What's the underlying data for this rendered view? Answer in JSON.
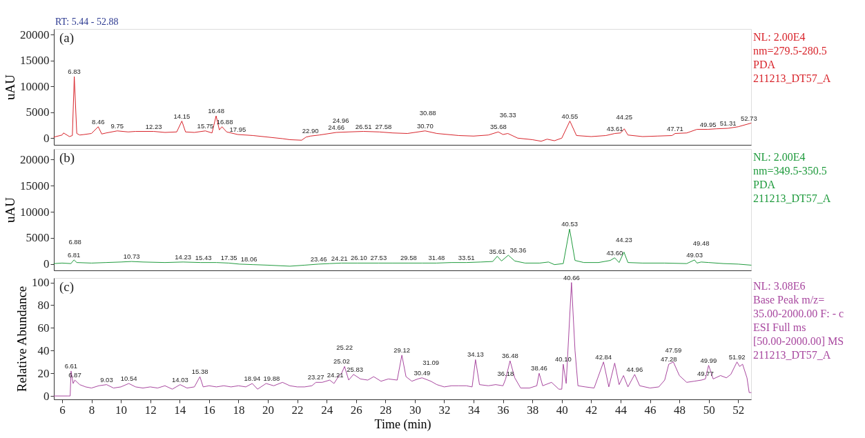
{
  "chart_data": [
    {
      "type": "line",
      "title": "(a)",
      "subtitle": "RT: 5.44 - 52.88",
      "ylabel": "uAU",
      "xlim": [
        5.44,
        52.88
      ],
      "ylim": [
        -1300,
        21100
      ],
      "xticks": [
        6,
        8,
        10,
        12,
        14,
        16,
        18,
        20,
        22,
        24,
        26,
        28,
        30,
        32,
        34,
        36,
        38,
        40,
        42,
        44,
        46,
        48,
        50,
        52
      ],
      "yticks": [
        0,
        5000,
        10000,
        15000,
        20000
      ],
      "tick_labels": "y",
      "grid": false,
      "series": [
        {
          "color": "#d8232a",
          "line_style": "solid",
          "x": [
            5.44,
            6.0,
            6.1,
            6.5,
            6.7,
            6.83,
            7.0,
            7.2,
            7.5,
            8.0,
            8.46,
            8.7,
            9.0,
            9.75,
            10.5,
            11.0,
            12.23,
            13.0,
            13.8,
            14.15,
            14.4,
            15.0,
            15.75,
            16.2,
            16.48,
            16.7,
            16.88,
            17.2,
            17.95,
            19.0,
            20.0,
            21.0,
            21.5,
            22.3,
            22.6,
            22.9,
            23.5,
            24.66,
            25.5,
            26.51,
            27.58,
            28.5,
            29.5,
            30.7,
            31.5,
            33.0,
            34.0,
            35.0,
            35.68,
            36.0,
            36.33,
            37.0,
            38.0,
            38.6,
            39.0,
            39.5,
            40.0,
            40.55,
            41.0,
            42.0,
            43.0,
            43.61,
            44.0,
            44.25,
            44.5,
            45.5,
            46.5,
            47.5,
            47.71,
            48.5,
            49.2,
            49.95,
            50.5,
            51.31,
            52.0,
            52.88
          ],
          "values": [
            200,
            600,
            1000,
            300,
            500,
            11900,
            900,
            600,
            700,
            900,
            2200,
            800,
            1000,
            1400,
            1200,
            1300,
            1300,
            1100,
            1200,
            3300,
            1200,
            1100,
            1400,
            1000,
            4300,
            1600,
            2200,
            1200,
            700,
            500,
            200,
            -100,
            -300,
            -400,
            200,
            400,
            600,
            1100,
            1200,
            1300,
            1200,
            1000,
            900,
            1400,
            900,
            500,
            400,
            600,
            1200,
            700,
            900,
            0,
            -300,
            -600,
            -200,
            -500,
            0,
            3300,
            500,
            300,
            500,
            900,
            1000,
            1800,
            600,
            300,
            400,
            500,
            900,
            1000,
            1700,
            1700,
            1800,
            1900,
            2200,
            2900
          ]
        }
      ],
      "annotations": [
        "NL: 2.00E4",
        "nm=279.5-280.5",
        "PDA",
        "211213_DT57_A",
        {
          "text": "6.83",
          "x": 6.83,
          "y": 11900
        },
        {
          "text": "8.46",
          "x": 8.46,
          "y": 2200
        },
        {
          "text": "9.75",
          "x": 9.75,
          "y": 1400
        },
        {
          "text": "12.23",
          "x": 12.23,
          "y": 1300
        },
        {
          "text": "14.15",
          "x": 14.15,
          "y": 3300
        },
        {
          "text": "15.75",
          "x": 15.75,
          "y": 1400
        },
        {
          "text": "16.48",
          "x": 16.48,
          "y": 4300
        },
        {
          "text": "16.88",
          "x": 16.88,
          "y": 2200
        },
        {
          "text": "17.95",
          "x": 17.95,
          "y": 700
        },
        {
          "text": "22.90",
          "x": 22.9,
          "y": 400
        },
        {
          "text": "24.66",
          "x": 24.66,
          "y": 1100
        },
        {
          "text": "24.96",
          "x": 24.96,
          "y": 1100
        },
        {
          "text": "26.51",
          "x": 26.51,
          "y": 1300
        },
        {
          "text": "27.58",
          "x": 27.58,
          "y": 1200
        },
        {
          "text": "30.70",
          "x": 30.7,
          "y": 1400
        },
        {
          "text": "30.88",
          "x": 30.88,
          "y": 1300
        },
        {
          "text": "35.68",
          "x": 35.68,
          "y": 1200
        },
        {
          "text": "36.33",
          "x": 36.33,
          "y": 900
        },
        {
          "text": "40.55",
          "x": 40.55,
          "y": 3300
        },
        {
          "text": "43.61",
          "x": 43.61,
          "y": 900
        },
        {
          "text": "44.25",
          "x": 44.25,
          "y": 1800
        },
        {
          "text": "47.71",
          "x": 47.71,
          "y": 900
        },
        {
          "text": "49.95",
          "x": 49.95,
          "y": 1700
        },
        {
          "text": "51.31",
          "x": 51.31,
          "y": 1900
        },
        {
          "text": "52.73",
          "x": 52.73,
          "y": 2800
        }
      ]
    },
    {
      "type": "line",
      "title": "(b)",
      "ylabel": "uAU",
      "xlim": [
        5.44,
        52.88
      ],
      "ylim": [
        -1200,
        22000
      ],
      "xticks": [
        6,
        8,
        10,
        12,
        14,
        16,
        18,
        20,
        22,
        24,
        26,
        28,
        30,
        32,
        34,
        36,
        38,
        40,
        42,
        44,
        46,
        48,
        50,
        52
      ],
      "yticks": [
        0,
        5000,
        10000,
        15000,
        20000
      ],
      "tick_labels": "y",
      "grid": false,
      "series": [
        {
          "color": "#1e9a3c",
          "line_style": "solid",
          "x": [
            5.44,
            6.0,
            6.6,
            6.81,
            7.0,
            8.0,
            9.0,
            10.0,
            10.73,
            11.5,
            13.0,
            14.23,
            15.43,
            16.5,
            17.35,
            18.06,
            19.0,
            20.0,
            21.5,
            22.5,
            23.46,
            24.21,
            25.0,
            26.1,
            27.53,
            28.5,
            29.58,
            30.5,
            31.48,
            32.5,
            33.51,
            34.5,
            35.3,
            35.61,
            35.9,
            36.36,
            36.8,
            37.5,
            38.5,
            39.1,
            39.5,
            40.1,
            40.53,
            40.9,
            41.5,
            42.5,
            43.3,
            43.6,
            43.9,
            44.23,
            44.5,
            45.5,
            47.0,
            48.5,
            49.03,
            49.2,
            49.48,
            50.0,
            51.0,
            52.0,
            52.88
          ],
          "values": [
            100,
            200,
            100,
            800,
            300,
            200,
            300,
            400,
            500,
            400,
            300,
            400,
            300,
            300,
            200,
            0,
            -100,
            -200,
            -400,
            -200,
            0,
            100,
            200,
            200,
            200,
            200,
            200,
            200,
            200,
            300,
            300,
            400,
            500,
            1500,
            600,
            1700,
            600,
            200,
            200,
            400,
            -100,
            100,
            6700,
            700,
            300,
            300,
            700,
            1200,
            300,
            2300,
            300,
            200,
            200,
            100,
            800,
            200,
            400,
            300,
            100,
            0,
            -200
          ]
        }
      ],
      "annotations": [
        "NL: 2.00E4",
        "nm=349.5-350.5",
        "PDA",
        "211213_DT57_A",
        {
          "text": "6.81",
          "x": 6.81,
          "y": 800
        },
        {
          "text": "6.88",
          "x": 6.88,
          "y": 600
        },
        {
          "text": "10.73",
          "x": 10.73,
          "y": 500
        },
        {
          "text": "14.23",
          "x": 14.23,
          "y": 400
        },
        {
          "text": "15.43",
          "x": 15.43,
          "y": 300
        },
        {
          "text": "17.35",
          "x": 17.35,
          "y": 200
        },
        {
          "text": "18.06",
          "x": 18.06,
          "y": 0
        },
        {
          "text": "23.46",
          "x": 23.46,
          "y": 0
        },
        {
          "text": "24.21",
          "x": 24.21,
          "y": 100
        },
        {
          "text": "26.10",
          "x": 26.1,
          "y": 200
        },
        {
          "text": "27.53",
          "x": 27.53,
          "y": 200
        },
        {
          "text": "29.58",
          "x": 29.58,
          "y": 200
        },
        {
          "text": "31.48",
          "x": 31.48,
          "y": 200
        },
        {
          "text": "33.51",
          "x": 33.51,
          "y": 300
        },
        {
          "text": "35.61",
          "x": 35.61,
          "y": 1500
        },
        {
          "text": "36.36",
          "x": 36.36,
          "y": 1700
        },
        {
          "text": "40.53",
          "x": 40.53,
          "y": 6700
        },
        {
          "text": "43.60",
          "x": 43.6,
          "y": 1200
        },
        {
          "text": "44.23",
          "x": 44.23,
          "y": 2300
        },
        {
          "text": "49.03",
          "x": 49.03,
          "y": 800
        },
        {
          "text": "49.48",
          "x": 49.48,
          "y": 400
        }
      ]
    },
    {
      "type": "line",
      "title": "(c)",
      "xlabel": "Time (min)",
      "ylabel": "Relative Abundance",
      "xlim": [
        5.44,
        52.88
      ],
      "ylim": [
        -3,
        104
      ],
      "xticks": [
        6,
        8,
        10,
        12,
        14,
        16,
        18,
        20,
        22,
        24,
        26,
        28,
        30,
        32,
        34,
        36,
        38,
        40,
        42,
        44,
        46,
        48,
        50,
        52
      ],
      "yticks": [
        0,
        20,
        40,
        60,
        80,
        100
      ],
      "grid": false,
      "series": [
        {
          "color": "#a8479f",
          "line_style": "solid",
          "x": [
            5.44,
            6.4,
            6.55,
            6.61,
            6.75,
            6.87,
            7.2,
            7.6,
            8.0,
            8.5,
            9.03,
            9.5,
            10.0,
            10.54,
            11.0,
            11.5,
            12.0,
            12.5,
            13.0,
            13.5,
            14.03,
            14.5,
            15.0,
            15.38,
            15.6,
            16.0,
            16.5,
            17.0,
            17.5,
            18.0,
            18.5,
            18.94,
            19.3,
            19.88,
            20.4,
            21.0,
            21.5,
            22.0,
            22.5,
            23.0,
            23.27,
            23.7,
            24.21,
            24.5,
            24.8,
            25.02,
            25.22,
            25.5,
            25.83,
            26.3,
            26.8,
            27.2,
            27.7,
            28.2,
            28.8,
            29.12,
            29.4,
            29.8,
            30.2,
            30.49,
            31.09,
            31.5,
            32.0,
            32.5,
            33.0,
            33.5,
            33.9,
            34.13,
            34.4,
            35.0,
            35.5,
            36.0,
            36.18,
            36.48,
            36.8,
            37.2,
            37.8,
            38.3,
            38.46,
            38.7,
            39.3,
            39.8,
            40.0,
            40.1,
            40.3,
            40.66,
            40.9,
            41.1,
            41.6,
            42.2,
            42.84,
            43.2,
            43.6,
            43.9,
            44.2,
            44.5,
            44.96,
            45.3,
            46.0,
            46.6,
            47.0,
            47.28,
            47.59,
            48.0,
            48.5,
            49.0,
            49.5,
            49.77,
            49.99,
            50.3,
            50.8,
            51.2,
            51.5,
            51.92,
            52.1,
            52.3,
            52.6,
            52.75,
            52.88
          ],
          "values": [
            0,
            0,
            0,
            22,
            11,
            14,
            10,
            8,
            7,
            9,
            10,
            7,
            8,
            11,
            8,
            7,
            8,
            7,
            9,
            6,
            10,
            7,
            8,
            17,
            8,
            9,
            8,
            9,
            8,
            9,
            8,
            11,
            6,
            11,
            9,
            12,
            9,
            8,
            8,
            9,
            12,
            12,
            14,
            11,
            17,
            20,
            26,
            14,
            19,
            15,
            14,
            17,
            13,
            15,
            14,
            36,
            17,
            13,
            15,
            16,
            13,
            10,
            8,
            9,
            9,
            9,
            8,
            32,
            10,
            9,
            10,
            9,
            15,
            31,
            16,
            7,
            7,
            9,
            20,
            9,
            12,
            6,
            6,
            28,
            11,
            100,
            40,
            9,
            8,
            7,
            30,
            8,
            29,
            10,
            18,
            8,
            19,
            9,
            7,
            8,
            14,
            28,
            30,
            18,
            12,
            13,
            14,
            15,
            27,
            15,
            18,
            16,
            19,
            30,
            26,
            28,
            16,
            3,
            3
          ]
        }
      ],
      "annotations": [
        "NL: 3.08E6",
        "Base Peak m/z=",
        "35.00-2000.00 F: - c",
        "ESI Full ms",
        "[50.00-2000.00] MS",
        "211213_DT57_A",
        {
          "text": "6.61",
          "x": 6.61,
          "y": 22
        },
        {
          "text": "6.87",
          "x": 6.87,
          "y": 14
        },
        {
          "text": "9.03",
          "x": 9.03,
          "y": 10
        },
        {
          "text": "10.54",
          "x": 10.54,
          "y": 11
        },
        {
          "text": "14.03",
          "x": 14.03,
          "y": 10
        },
        {
          "text": "15.38",
          "x": 15.38,
          "y": 17
        },
        {
          "text": "18.94",
          "x": 18.94,
          "y": 11
        },
        {
          "text": "19.88",
          "x": 19.88,
          "y": 11
        },
        {
          "text": "23.27",
          "x": 23.27,
          "y": 12
        },
        {
          "text": "24.21",
          "x": 24.21,
          "y": 14
        },
        {
          "text": "25.02",
          "x": 25.02,
          "y": 20
        },
        {
          "text": "25.22",
          "x": 25.22,
          "y": 26
        },
        {
          "text": "25.83",
          "x": 25.83,
          "y": 19
        },
        {
          "text": "29.12",
          "x": 29.12,
          "y": 36
        },
        {
          "text": "30.49",
          "x": 30.49,
          "y": 16
        },
        {
          "text": "31.09",
          "x": 31.09,
          "y": 13
        },
        {
          "text": "34.13",
          "x": 34.13,
          "y": 32
        },
        {
          "text": "36.18",
          "x": 36.18,
          "y": 15
        },
        {
          "text": "36.48",
          "x": 36.48,
          "y": 31
        },
        {
          "text": "38.46",
          "x": 38.46,
          "y": 20
        },
        {
          "text": "40.10",
          "x": 40.1,
          "y": 28
        },
        {
          "text": "40.66",
          "x": 40.66,
          "y": 100
        },
        {
          "text": "42.84",
          "x": 42.84,
          "y": 30
        },
        {
          "text": "44.96",
          "x": 44.96,
          "y": 19
        },
        {
          "text": "47.28",
          "x": 47.28,
          "y": 28
        },
        {
          "text": "47.59",
          "x": 47.59,
          "y": 30
        },
        {
          "text": "49.77",
          "x": 49.77,
          "y": 15
        },
        {
          "text": "49.99",
          "x": 49.99,
          "y": 27
        },
        {
          "text": "51.92",
          "x": 51.92,
          "y": 30
        }
      ]
    }
  ]
}
